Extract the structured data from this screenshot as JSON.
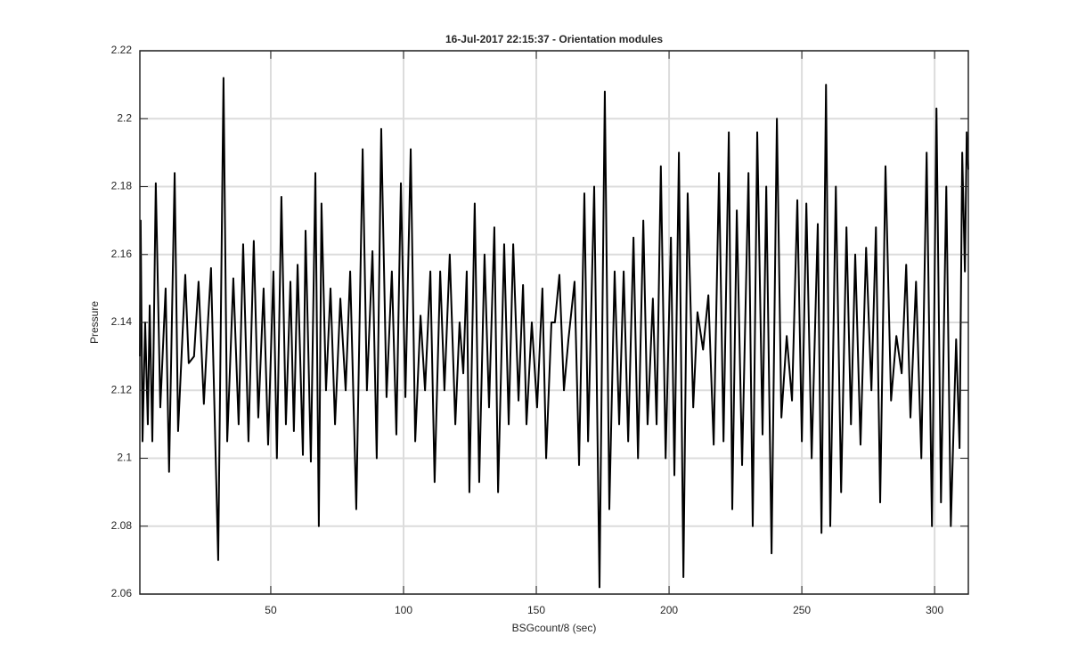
{
  "chart_data": {
    "type": "line",
    "title": "16-Jul-2017 22:15:37 - Orientation modules",
    "xlabel": "BSGcount/8 (sec)",
    "ylabel": "Pressure",
    "color": "#000000",
    "grid": true,
    "xlim": [
      0.7,
      312.7
    ],
    "ylim": [
      2.06,
      2.22
    ],
    "xticks": [
      50,
      100,
      150,
      200,
      250,
      300
    ],
    "yticks": [
      2.06,
      2.08,
      2.1,
      2.12,
      2.14,
      2.16,
      2.18,
      2.2,
      2.22
    ],
    "x": [
      0.7,
      1.0,
      1.7,
      2.7,
      3.7,
      4.4,
      5.4,
      6.7,
      8.4,
      10.4,
      11.7,
      13.8,
      15.1,
      17.8,
      19.1,
      21.1,
      22.8,
      24.8,
      26.2,
      27.5,
      30.2,
      32.2,
      33.6,
      35.9,
      37.9,
      39.6,
      41.6,
      43.6,
      45.3,
      47.3,
      49.0,
      51.0,
      52.3,
      54.0,
      55.7,
      57.4,
      58.7,
      60.1,
      62.1,
      63.1,
      65.1,
      66.8,
      68.1,
      69.1,
      70.8,
      72.5,
      74.2,
      76.2,
      78.2,
      79.9,
      82.2,
      84.6,
      86.2,
      88.3,
      89.9,
      91.6,
      93.6,
      95.6,
      97.3,
      99.0,
      100.7,
      102.7,
      104.4,
      106.4,
      108.1,
      110.1,
      111.7,
      113.8,
      115.4,
      117.4,
      119.5,
      121.1,
      122.5,
      123.8,
      124.8,
      126.8,
      128.5,
      130.5,
      132.2,
      134.2,
      135.6,
      137.9,
      139.6,
      141.3,
      143.3,
      145.0,
      146.3,
      148.3,
      150.3,
      152.3,
      153.7,
      155.7,
      157.0,
      158.7,
      160.4,
      162.1,
      164.4,
      166.1,
      168.1,
      169.5,
      171.8,
      173.8,
      175.8,
      177.5,
      179.5,
      181.2,
      182.9,
      184.6,
      186.6,
      188.3,
      190.3,
      191.9,
      193.9,
      195.3,
      196.9,
      198.7,
      200.7,
      202.0,
      203.7,
      205.4,
      207.0,
      209.1,
      210.7,
      212.8,
      214.8,
      216.8,
      218.8,
      220.5,
      222.5,
      223.8,
      225.5,
      227.5,
      229.9,
      231.5,
      233.2,
      235.2,
      236.6,
      238.6,
      240.6,
      242.3,
      244.3,
      246.3,
      248.3,
      250.0,
      251.7,
      253.7,
      256.0,
      257.4,
      259.1,
      260.7,
      262.8,
      264.8,
      266.8,
      268.5,
      270.1,
      272.1,
      274.2,
      276.2,
      277.9,
      279.5,
      281.5,
      283.6,
      285.6,
      287.6,
      289.3,
      290.9,
      293.0,
      295.0,
      297.0,
      299.0,
      300.7,
      302.4,
      304.4,
      306.1,
      308.1,
      309.4,
      310.4,
      311.4,
      312.1,
      312.7
    ],
    "values": [
      2.13,
      2.17,
      2.105,
      2.14,
      2.11,
      2.145,
      2.105,
      2.181,
      2.115,
      2.15,
      2.096,
      2.184,
      2.108,
      2.154,
      2.128,
      2.13,
      2.152,
      2.116,
      2.138,
      2.156,
      2.07,
      2.212,
      2.105,
      2.153,
      2.11,
      2.163,
      2.105,
      2.164,
      2.112,
      2.15,
      2.104,
      2.155,
      2.1,
      2.177,
      2.11,
      2.152,
      2.108,
      2.157,
      2.101,
      2.167,
      2.099,
      2.184,
      2.08,
      2.175,
      2.12,
      2.15,
      2.11,
      2.147,
      2.12,
      2.155,
      2.085,
      2.191,
      2.12,
      2.161,
      2.1,
      2.197,
      2.118,
      2.155,
      2.107,
      2.181,
      2.118,
      2.191,
      2.105,
      2.142,
      2.12,
      2.155,
      2.093,
      2.155,
      2.12,
      2.16,
      2.11,
      2.14,
      2.125,
      2.155,
      2.09,
      2.175,
      2.093,
      2.16,
      2.115,
      2.168,
      2.09,
      2.163,
      2.11,
      2.163,
      2.117,
      2.151,
      2.11,
      2.14,
      2.115,
      2.15,
      2.1,
      2.14,
      2.14,
      2.154,
      2.12,
      2.135,
      2.152,
      2.098,
      2.178,
      2.105,
      2.18,
      2.062,
      2.208,
      2.085,
      2.155,
      2.11,
      2.155,
      2.105,
      2.165,
      2.1,
      2.17,
      2.11,
      2.147,
      2.11,
      2.186,
      2.1,
      2.165,
      2.095,
      2.19,
      2.065,
      2.178,
      2.115,
      2.143,
      2.132,
      2.148,
      2.104,
      2.184,
      2.105,
      2.196,
      2.085,
      2.173,
      2.098,
      2.184,
      2.08,
      2.196,
      2.107,
      2.18,
      2.072,
      2.2,
      2.112,
      2.136,
      2.117,
      2.176,
      2.105,
      2.175,
      2.1,
      2.169,
      2.078,
      2.21,
      2.08,
      2.18,
      2.09,
      2.168,
      2.11,
      2.16,
      2.104,
      2.162,
      2.12,
      2.168,
      2.087,
      2.186,
      2.117,
      2.136,
      2.125,
      2.157,
      2.112,
      2.152,
      2.1,
      2.19,
      2.08,
      2.203,
      2.087,
      2.18,
      2.08,
      2.135,
      2.103,
      2.19,
      2.155,
      2.196,
      2.185
    ]
  }
}
